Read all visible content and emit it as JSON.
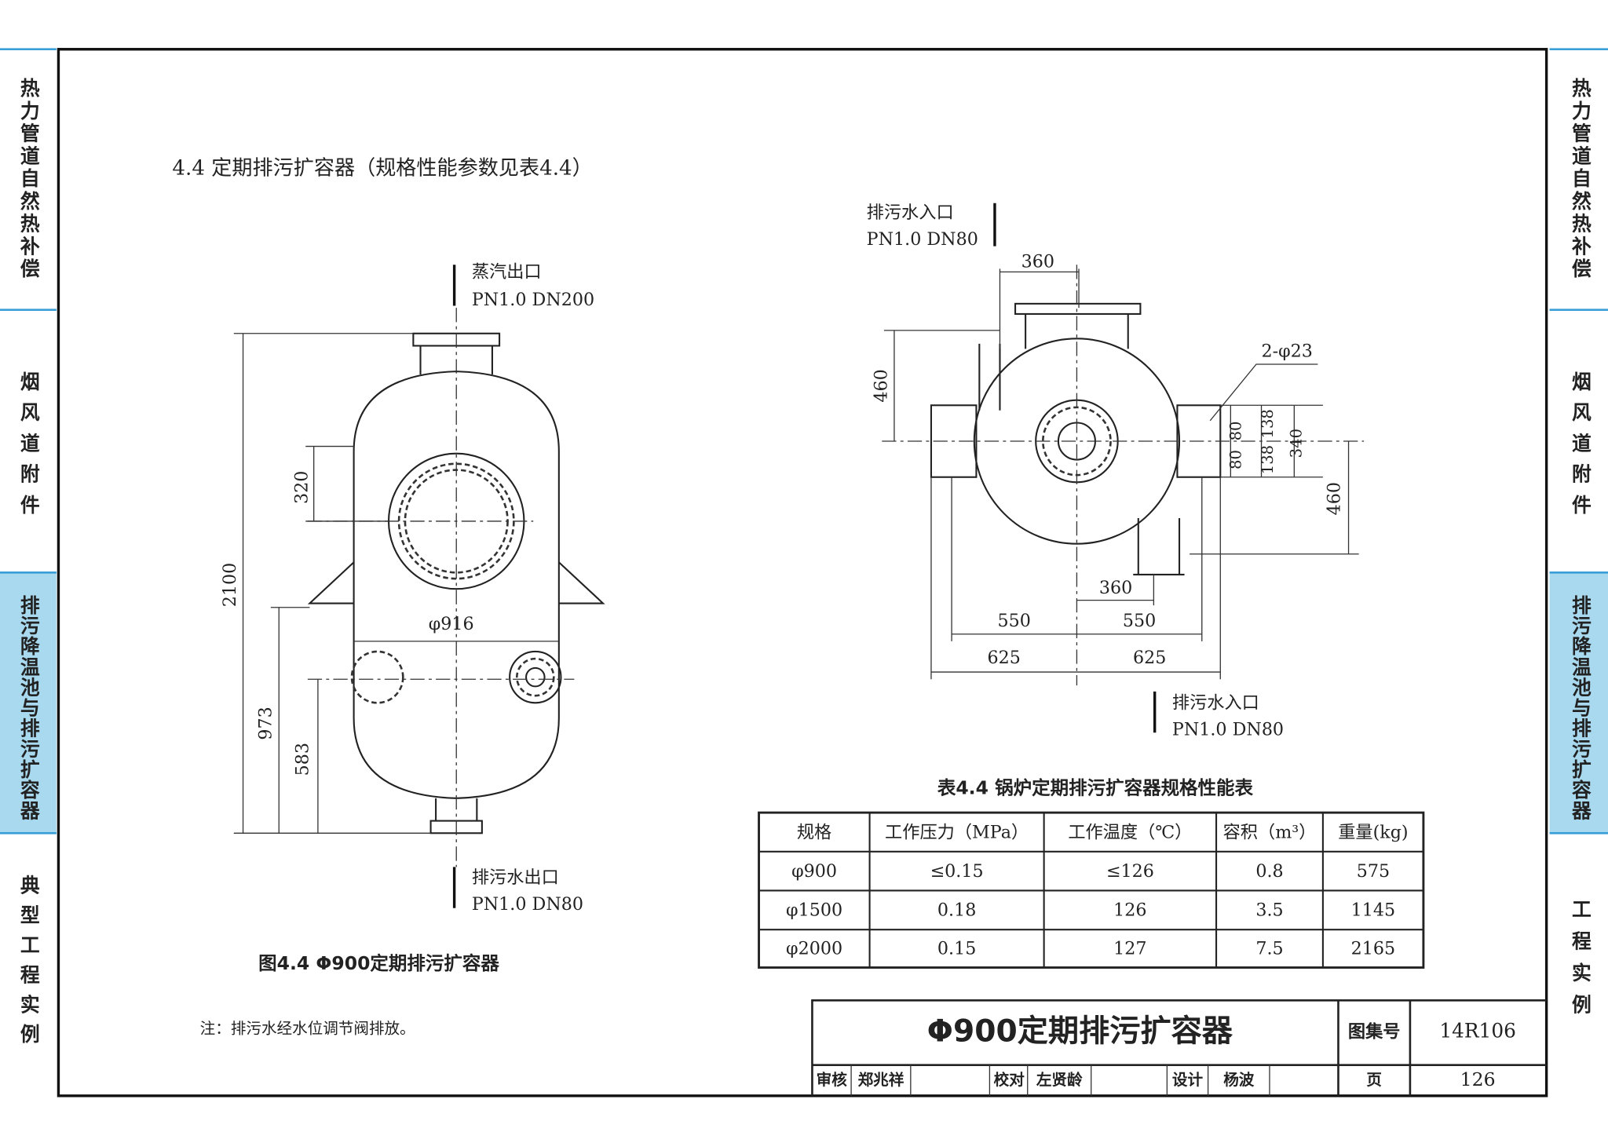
{
  "side_tabs_left": [
    "热力管道自然热补偿",
    "烟风道附件",
    "排污降温池与排污扩容器",
    "典型工程实例"
  ],
  "side_tabs_right": [
    "热力管道自然热补偿",
    "烟风道附件",
    "排污降温池与排污扩容器",
    "工程实例"
  ],
  "heading": "4.4 定期排污扩容器（规格性能参数见表4.4）",
  "left_drawing": {
    "steam_outlet": "蒸汽出口",
    "steam_spec": "PN1.0  DN200",
    "drain_outlet": "排污水出口",
    "drain_spec": "PN1.0  DN80",
    "dims": [
      "2100",
      "320",
      "φ916",
      "973",
      "583"
    ],
    "caption": "图4.4    Φ900定期排污扩容器"
  },
  "right_drawing": {
    "inlet_top": "排污水入口",
    "inlet_top_spec": "PN1.0  DN80",
    "inlet_bottom": "排污水入口",
    "inlet_bottom_spec": "PN1.0  DN80",
    "dims": [
      "360",
      "460",
      "2-φ23",
      "80",
      "80",
      "138",
      "138",
      "340",
      "460",
      "360",
      "550",
      "550",
      "625",
      "625"
    ]
  },
  "table": {
    "title": "表4.4 锅炉定期排污扩容器规格性能表",
    "header": [
      "规格",
      "工作压力（MPa）",
      "工作温度（℃）",
      "容积（m³）",
      "重量(kg)"
    ],
    "rows": [
      [
        "φ900",
        "≤0.15",
        "≤126",
        "0.8",
        "575"
      ],
      [
        "φ1500",
        "0.18",
        "126",
        "3.5",
        "1145"
      ],
      [
        "φ2000",
        "0.15",
        "127",
        "7.5",
        "2165"
      ]
    ]
  },
  "note": "注：排污水经水位调节阀排放。",
  "title_block": {
    "title": "Φ900定期排污扩容器",
    "atlas_label": "图集号",
    "atlas_no": "14R106",
    "review": "审核",
    "reviewer": "郑兆祥",
    "check": "校对",
    "checker": "左贤龄",
    "design": "设计",
    "designer": "杨波",
    "page_label": "页",
    "page_no": "126"
  }
}
